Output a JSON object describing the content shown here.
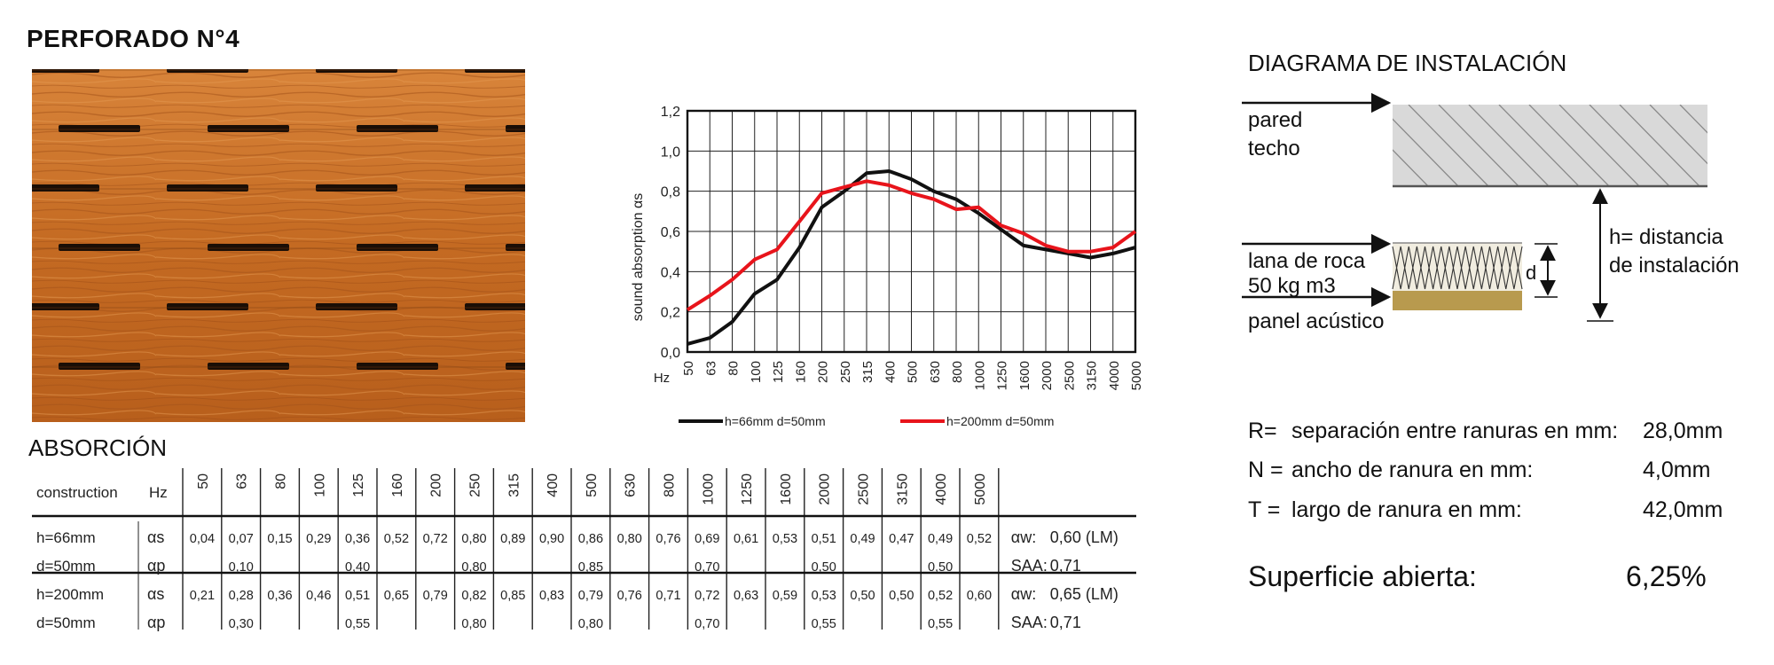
{
  "title": "PERFORADO N°4",
  "absorption_title": "ABSORCIÓN",
  "installation": {
    "title": "DIAGRAMA DE INSTALACIÓN",
    "label_wall": "pared",
    "label_ceiling": "techo",
    "label_rockwool_1": "lana de roca",
    "label_rockwool_2": "50 kg m3",
    "label_panel": "panel acústico",
    "label_d": "d",
    "label_h_1": "h=  distancia",
    "label_h_2": "de instalación"
  },
  "specs": [
    {
      "key": "R=",
      "desc": "separación entre ranuras en mm:",
      "value": "28,0mm"
    },
    {
      "key": "N =",
      "desc": "ancho de ranura en mm:",
      "value": "4,0mm"
    },
    {
      "key": "T =",
      "desc": "largo de ranura en mm:",
      "value": "42,0mm"
    }
  ],
  "surface": {
    "label": "Superficie abierta:",
    "value": "6,25%"
  },
  "table": {
    "header_construction": "construction",
    "header_hz": "Hz",
    "frequencies": [
      "50",
      "63",
      "80",
      "100",
      "125",
      "160",
      "200",
      "250",
      "315",
      "400",
      "500",
      "630",
      "800",
      "1000",
      "1250",
      "1600",
      "2000",
      "2500",
      "3150",
      "4000",
      "5000"
    ],
    "groups": [
      {
        "rows": [
          {
            "construction": "h=66mm",
            "symbol": "αs",
            "cells": [
              "0,04",
              "0,07",
              "0,15",
              "0,29",
              "0,36",
              "0,52",
              "0,72",
              "0,80",
              "0,89",
              "0,90",
              "0,86",
              "0,80",
              "0,76",
              "0,69",
              "0,61",
              "0,53",
              "0,51",
              "0,49",
              "0,47",
              "0,49",
              "0,52"
            ],
            "summary_key": "αw:",
            "summary_value": "0,60 (LM)"
          },
          {
            "construction": "d=50mm",
            "symbol": "αp",
            "cells": [
              "",
              "0,10",
              "",
              "",
              "0,40",
              "",
              "",
              "0,80",
              "",
              "",
              "0,85",
              "",
              "",
              "0,70",
              "",
              "",
              "0,50",
              "",
              "",
              "0,50",
              ""
            ],
            "summary_key": "SAA:",
            "summary_value": "0,71"
          }
        ]
      },
      {
        "rows": [
          {
            "construction": "h=200mm",
            "symbol": "αs",
            "cells": [
              "0,21",
              "0,28",
              "0,36",
              "0,46",
              "0,51",
              "0,65",
              "0,79",
              "0,82",
              "0,85",
              "0,83",
              "0,79",
              "0,76",
              "0,71",
              "0,72",
              "0,63",
              "0,59",
              "0,53",
              "0,50",
              "0,50",
              "0,52",
              "0,60"
            ],
            "summary_key": "αw:",
            "summary_value": "0,65 (LM)"
          },
          {
            "construction": "d=50mm",
            "symbol": "αp",
            "cells": [
              "",
              "0,30",
              "",
              "",
              "0,55",
              "",
              "",
              "0,80",
              "",
              "",
              "0,80",
              "",
              "",
              "0,70",
              "",
              "",
              "0,55",
              "",
              "",
              "0,55",
              ""
            ],
            "summary_key": "SAA:",
            "summary_value": "0,71"
          }
        ]
      }
    ]
  },
  "chart_data": {
    "type": "line",
    "categories": [
      "50",
      "63",
      "80",
      "100",
      "125",
      "160",
      "200",
      "250",
      "315",
      "400",
      "500",
      "630",
      "800",
      "1000",
      "1250",
      "1600",
      "2000",
      "2500",
      "3150",
      "4000",
      "5000"
    ],
    "xlabel": "Hz",
    "ylabel": "sound absorption αs",
    "ylim": [
      0,
      1.2
    ],
    "yticks": [
      "0,0",
      "0,2",
      "0,4",
      "0,6",
      "0,8",
      "1,0",
      "1,2"
    ],
    "grid": true,
    "legend_position": "bottom",
    "series": [
      {
        "name": "h=66mm d=50mm",
        "color": "#111111",
        "values": [
          0.04,
          0.07,
          0.15,
          0.29,
          0.36,
          0.52,
          0.72,
          0.8,
          0.89,
          0.9,
          0.86,
          0.8,
          0.76,
          0.69,
          0.61,
          0.53,
          0.51,
          0.49,
          0.47,
          0.49,
          0.52
        ]
      },
      {
        "name": "h=200mm d=50mm",
        "color": "#e8141b",
        "values": [
          0.21,
          0.28,
          0.36,
          0.46,
          0.51,
          0.65,
          0.79,
          0.82,
          0.85,
          0.83,
          0.79,
          0.76,
          0.71,
          0.72,
          0.63,
          0.59,
          0.53,
          0.5,
          0.5,
          0.52,
          0.6
        ]
      }
    ]
  },
  "colors": {
    "wood": "#c86a1e",
    "slot": "#1a0e06",
    "felt": "#b89a4e"
  }
}
